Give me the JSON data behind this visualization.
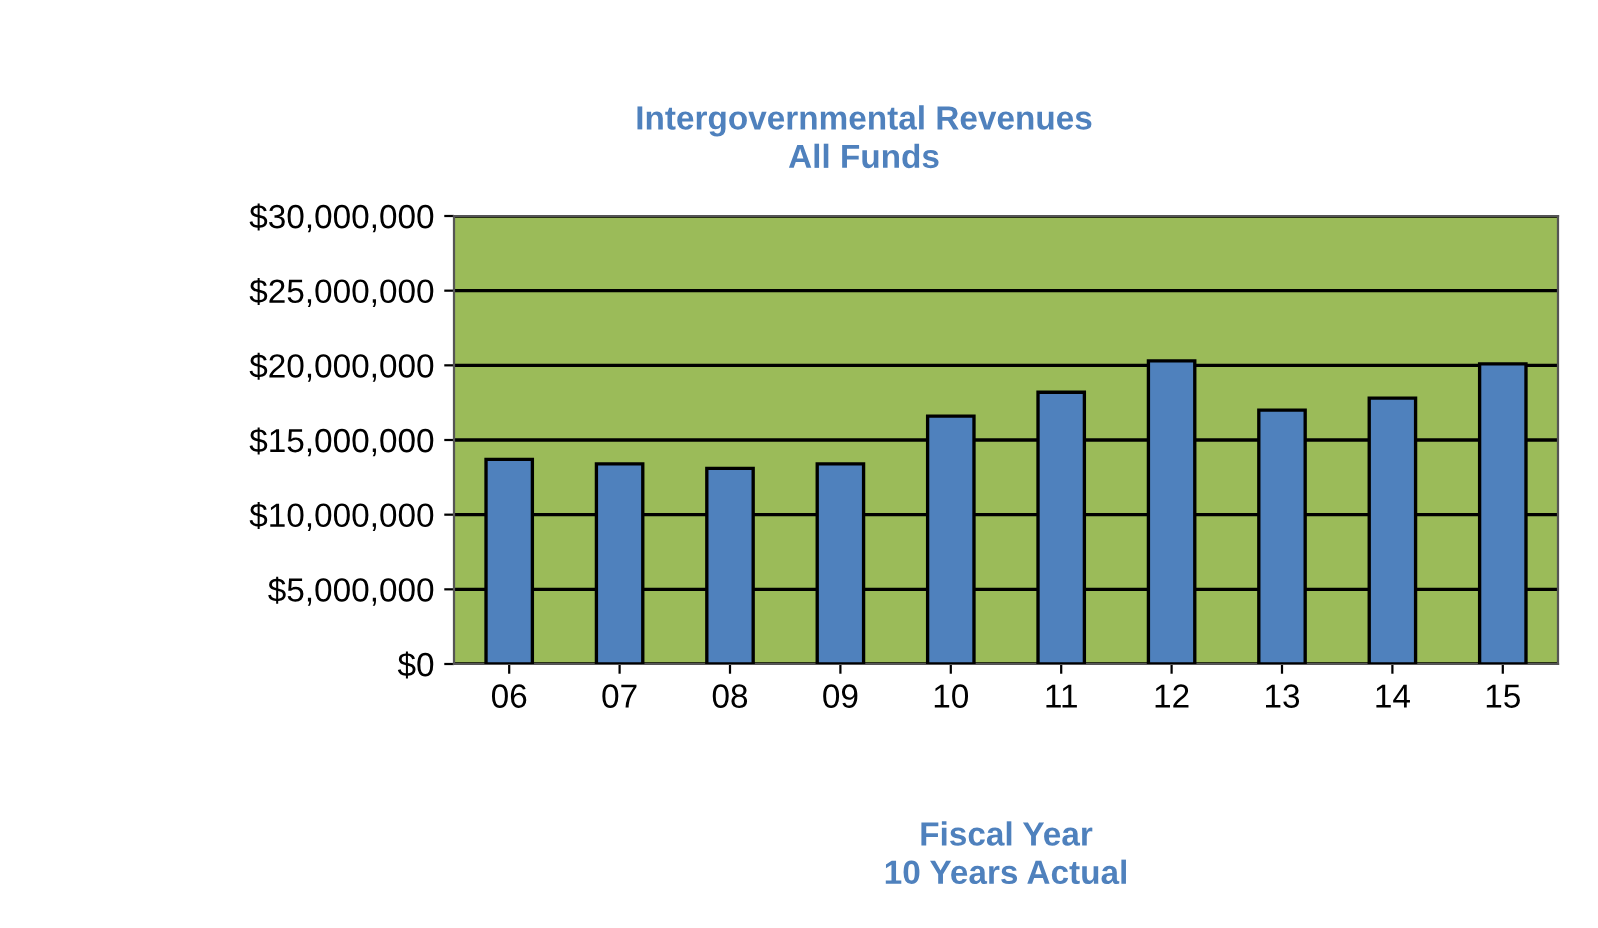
{
  "chart_data": {
    "type": "bar",
    "title": "Intergovernmental Revenues\nAll Funds",
    "xlabel": "Fiscal Year\n10 Years Actual",
    "categories": [
      "06",
      "07",
      "08",
      "09",
      "10",
      "11",
      "12",
      "13",
      "14",
      "15"
    ],
    "series": [
      {
        "color": "#4f81bd",
        "values": [
          13700000,
          13400000,
          13100000,
          13400000,
          16600000,
          18200000,
          20300000,
          17000000,
          17800000,
          20100000
        ]
      }
    ],
    "ylim": [
      0,
      30000000
    ],
    "yticks": [
      {
        "value": 0,
        "label": "$0"
      },
      {
        "value": 5000000,
        "label": "$5,000,000"
      },
      {
        "value": 10000000,
        "label": "$10,000,000"
      },
      {
        "value": 15000000,
        "label": "$15,000,000"
      },
      {
        "value": 20000000,
        "label": "$20,000,000"
      },
      {
        "value": 25000000,
        "label": "$25,000,000"
      },
      {
        "value": 30000000,
        "label": "$30,000,000"
      }
    ],
    "grid": "y",
    "legend": false
  }
}
